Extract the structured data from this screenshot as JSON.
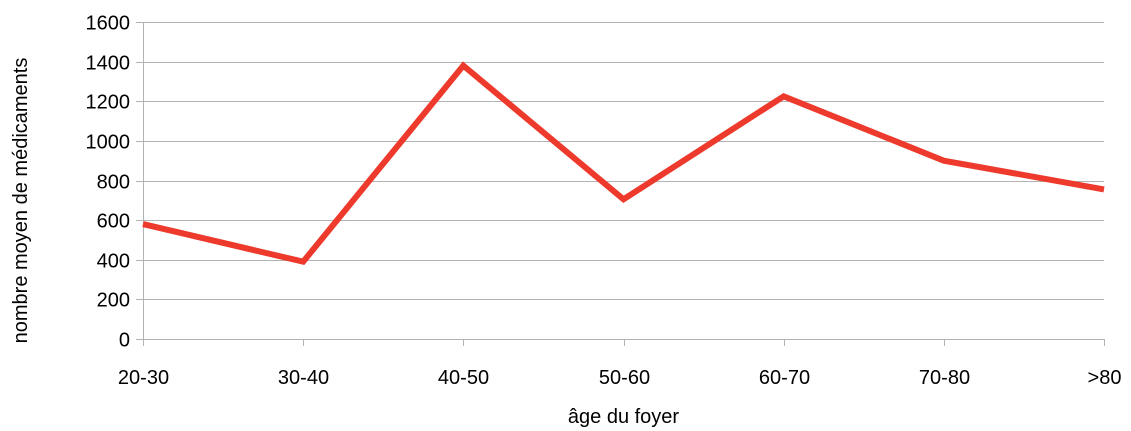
{
  "chart_data": {
    "type": "line",
    "title": "",
    "xlabel": "âge du foyer",
    "ylabel": "nombre moyen de médicaments",
    "categories": [
      "20-30",
      "30-40",
      "40-50",
      "50-60",
      "60-70",
      "70-80",
      ">80"
    ],
    "series": [
      {
        "values": [
          580,
          390,
          1380,
          705,
          1225,
          900,
          755
        ],
        "color": "#ee3a2c"
      }
    ],
    "ylim": [
      0,
      1600
    ],
    "yticks": [
      0,
      200,
      400,
      600,
      800,
      1000,
      1200,
      1400,
      1600
    ],
    "grid": true,
    "legend": "none"
  }
}
